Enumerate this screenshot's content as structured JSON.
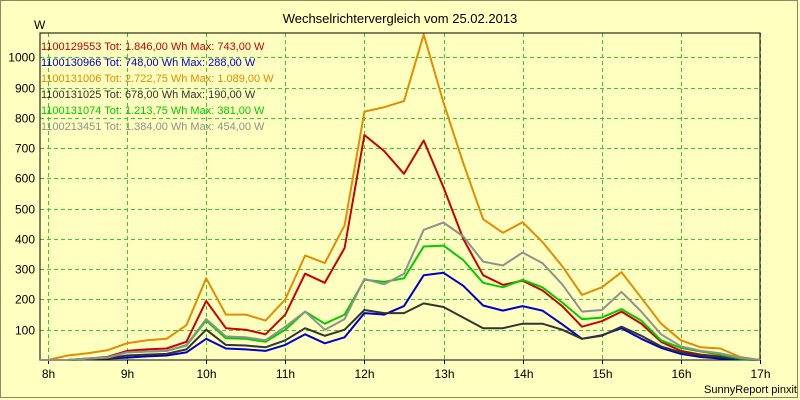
{
  "chart_data": {
    "type": "line",
    "title": "Wechselrichtervergleich vom 25.02.2013",
    "ylabel": "W",
    "xlabel": "",
    "footer": "SunnyReport pinxit",
    "grid": true,
    "legend_position": "top-left",
    "ylim": [
      0,
      1080
    ],
    "xlim": [
      7.9,
      17.0
    ],
    "y_ticks": [
      100,
      200,
      300,
      400,
      500,
      600,
      700,
      800,
      900,
      1000
    ],
    "x_ticks": [
      8,
      9,
      10,
      11,
      12,
      13,
      14,
      15,
      16,
      17
    ],
    "x_tick_labels": [
      "8h",
      "9h",
      "10h",
      "11h",
      "12h",
      "13h",
      "14h",
      "15h",
      "16h",
      "17h"
    ],
    "x": [
      7.9,
      8.0,
      8.25,
      8.5,
      8.75,
      9.0,
      9.25,
      9.5,
      9.75,
      10.0,
      10.25,
      10.5,
      10.75,
      11.0,
      11.25,
      11.5,
      11.75,
      12.0,
      12.25,
      12.5,
      12.75,
      13.0,
      13.25,
      13.5,
      13.75,
      14.0,
      14.25,
      14.5,
      14.75,
      15.0,
      15.25,
      15.5,
      15.75,
      16.0,
      16.25,
      16.5,
      16.75,
      17.0
    ],
    "series": [
      {
        "name": "1100129553",
        "label": "1100129553 Tot: 1.846,00 Wh Max: 743,00 W",
        "color": "#cc0000",
        "values": [
          0,
          0,
          0,
          5,
          10,
          30,
          35,
          38,
          60,
          195,
          105,
          100,
          85,
          150,
          285,
          255,
          370,
          743,
          690,
          615,
          725,
          570,
          400,
          280,
          248,
          262,
          230,
          178,
          110,
          128,
          160,
          120,
          60,
          30,
          18,
          12,
          5,
          0
        ]
      },
      {
        "name": "1100130966",
        "label": "1100130966 Tot: 748,00 Wh Max: 288,00 W",
        "color": "#0000cc",
        "values": [
          0,
          0,
          0,
          2,
          5,
          8,
          12,
          15,
          25,
          70,
          38,
          35,
          30,
          50,
          85,
          55,
          75,
          155,
          150,
          178,
          280,
          288,
          245,
          180,
          163,
          178,
          163,
          118,
          70,
          82,
          105,
          70,
          40,
          20,
          10,
          5,
          2,
          0
        ]
      },
      {
        "name": "1100131006",
        "label": "1100131006 Tot: 2.722,75 Wh Max: 1.089,00 W",
        "color": "#e68a00",
        "values": [
          0,
          0,
          15,
          22,
          32,
          55,
          65,
          70,
          115,
          270,
          150,
          150,
          130,
          200,
          345,
          320,
          445,
          820,
          835,
          855,
          1075,
          850,
          650,
          465,
          420,
          455,
          390,
          310,
          215,
          240,
          290,
          205,
          120,
          65,
          42,
          38,
          10,
          0
        ]
      },
      {
        "name": "1100131025",
        "label": "1100131025 Tot: 678,00 Wh Max: 190,00 W",
        "color": "#333333",
        "values": [
          0,
          0,
          0,
          3,
          5,
          15,
          18,
          20,
          35,
          100,
          50,
          48,
          42,
          65,
          105,
          80,
          100,
          165,
          155,
          155,
          187,
          175,
          140,
          105,
          105,
          120,
          120,
          100,
          70,
          80,
          110,
          80,
          45,
          25,
          15,
          10,
          3,
          0
        ]
      },
      {
        "name": "1100131074",
        "label": "1100131074 Tot: 1.213,75 Wh Max: 381,00 W",
        "color": "#00cc00",
        "values": [
          0,
          0,
          0,
          5,
          8,
          25,
          28,
          30,
          48,
          130,
          72,
          70,
          60,
          100,
          160,
          120,
          150,
          265,
          258,
          270,
          375,
          378,
          330,
          255,
          240,
          265,
          240,
          190,
          135,
          140,
          168,
          130,
          65,
          40,
          28,
          18,
          5,
          0
        ]
      },
      {
        "name": "1100213451",
        "label": "1100213451 Tot: 1.384,00 Wh Max: 454,00 W",
        "color": "#909090",
        "values": [
          0,
          0,
          0,
          5,
          8,
          25,
          28,
          30,
          50,
          135,
          78,
          75,
          65,
          110,
          160,
          100,
          135,
          268,
          250,
          285,
          430,
          454,
          408,
          325,
          312,
          355,
          320,
          250,
          160,
          165,
          225,
          160,
          85,
          45,
          30,
          22,
          8,
          0
        ]
      }
    ]
  }
}
